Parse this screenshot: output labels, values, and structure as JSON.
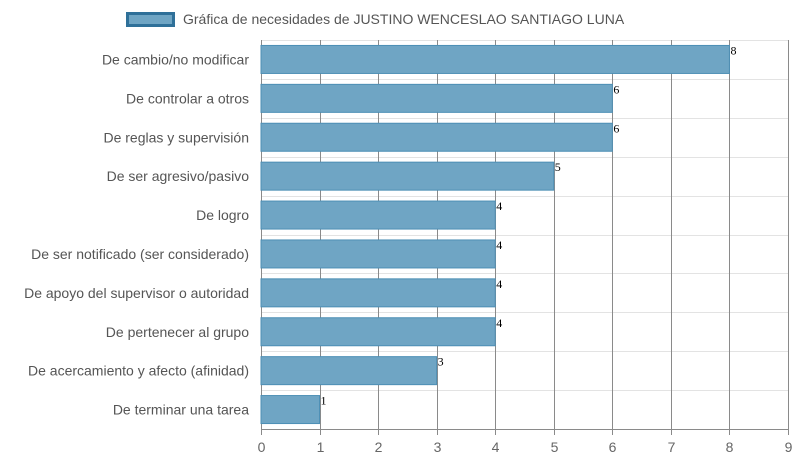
{
  "legend": {
    "label": "Gráfica de necesidades de JUSTINO WENCESLAO SANTIAGO LUNA"
  },
  "colors": {
    "bar_fill": "#6fa5c4",
    "bar_stroke": "#4d8fb5",
    "legend_border": "#2f7099",
    "grid_vertical": "#8a8a8a",
    "grid_horizontal": "#e3e3e3"
  },
  "chart_data": {
    "type": "bar",
    "orientation": "horizontal",
    "title": "",
    "xlabel": "",
    "ylabel": "",
    "xlim": [
      0,
      9
    ],
    "ticks": [
      0,
      1,
      2,
      3,
      4,
      5,
      6,
      7,
      8,
      9
    ],
    "grid": true,
    "legend_position": "top-center",
    "categories": [
      "De cambio/no modificar",
      "De controlar a otros",
      "De reglas y supervisión",
      "De ser agresivo/pasivo",
      "De logro",
      "De ser notificado (ser considerado)",
      "De apoyo del supervisor o autoridad",
      "De pertenecer al grupo",
      "De acercamiento y afecto (afinidad)",
      "De terminar una tarea"
    ],
    "series": [
      {
        "name": "Gráfica de necesidades de JUSTINO WENCESLAO SANTIAGO LUNA",
        "values": [
          8,
          6,
          6,
          5,
          4,
          4,
          4,
          4,
          3,
          1
        ]
      }
    ]
  }
}
